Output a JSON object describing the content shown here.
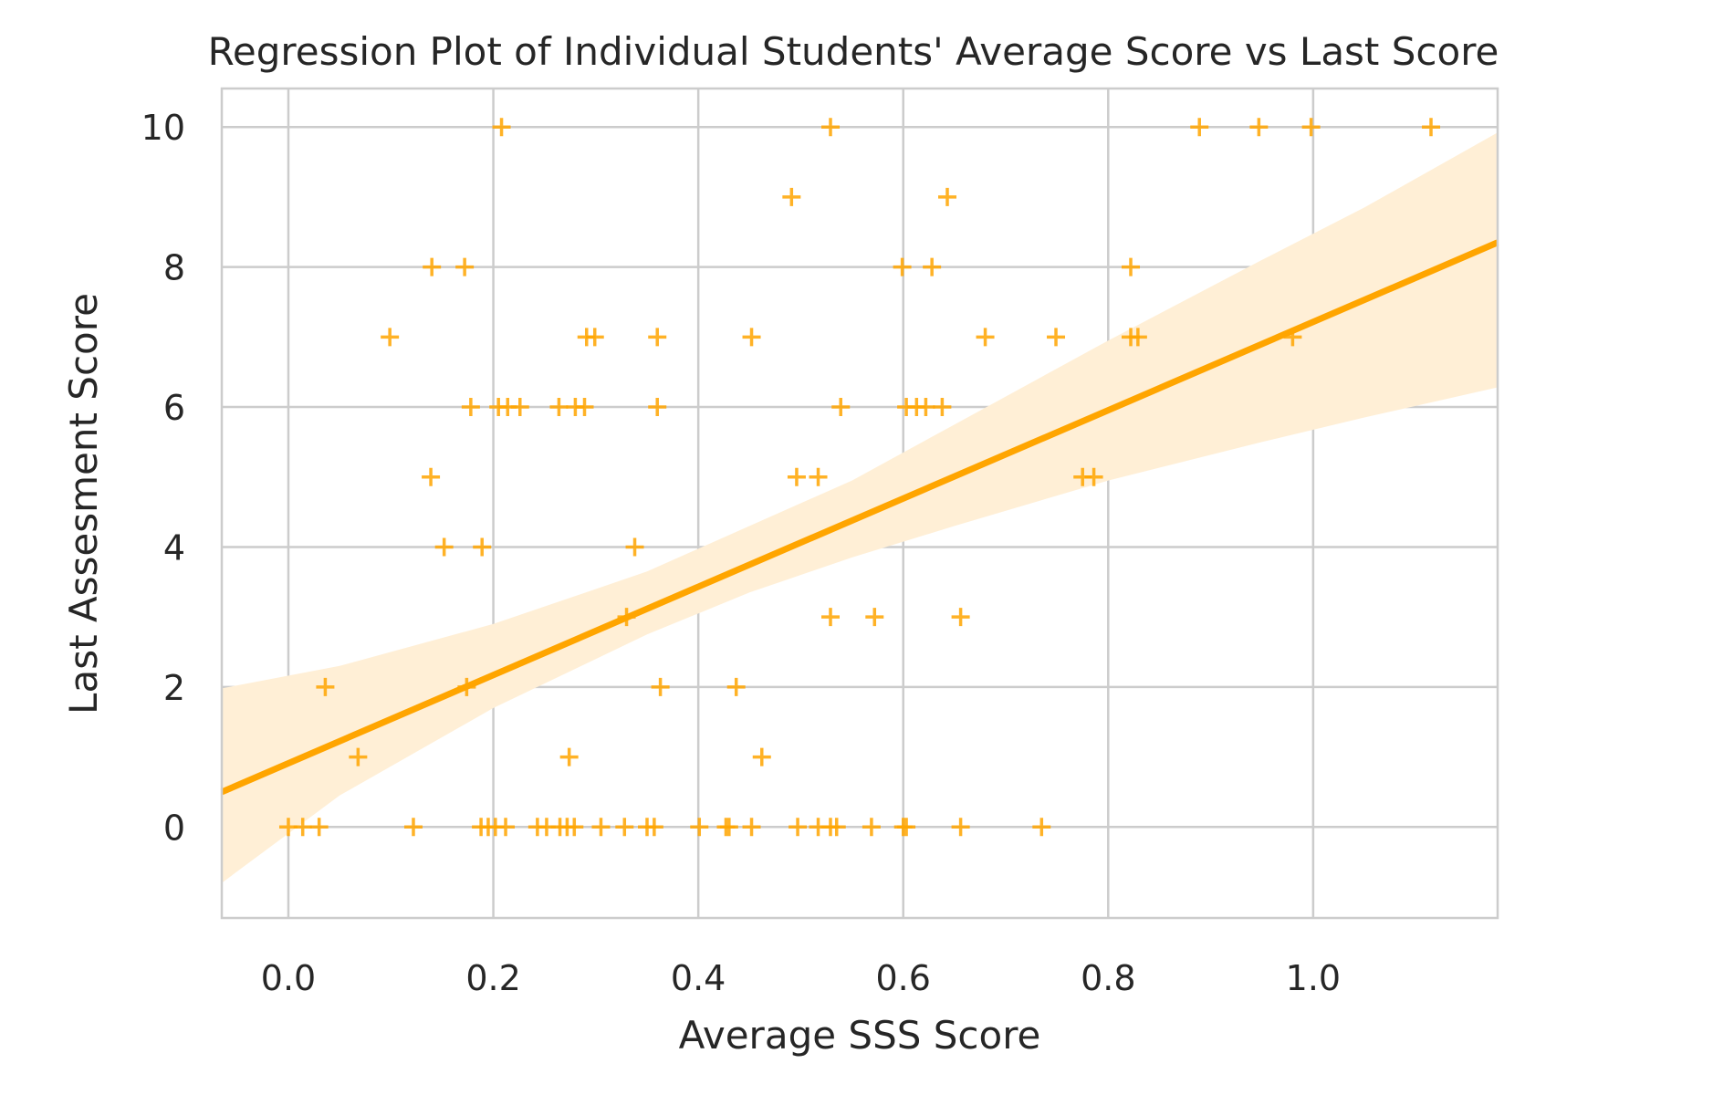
{
  "chart_data": {
    "type": "scatter",
    "title": "Regression Plot of Individual Students' Average Score vs Last Score",
    "xlabel": "Average SSS Score",
    "ylabel": "Last Assesment Score",
    "xlim": [
      -0.065,
      1.18
    ],
    "ylim": [
      -1.3,
      10.55
    ],
    "xticks": [
      0.0,
      0.2,
      0.4,
      0.6,
      0.8,
      1.0
    ],
    "xtick_labels": [
      "0.0",
      "0.2",
      "0.4",
      "0.6",
      "0.8",
      "1.0"
    ],
    "yticks": [
      0,
      2,
      4,
      6,
      8,
      10
    ],
    "ytick_labels": [
      "0",
      "2",
      "4",
      "6",
      "8",
      "10"
    ],
    "grid": true,
    "marker": "+",
    "color": "#FFA500",
    "band_color": "#FFEFD6",
    "points": [
      {
        "x": 0.208,
        "y": 10
      },
      {
        "x": 0.529,
        "y": 10
      },
      {
        "x": 0.889,
        "y": 10
      },
      {
        "x": 0.947,
        "y": 10
      },
      {
        "x": 0.998,
        "y": 10
      },
      {
        "x": 1.115,
        "y": 10
      },
      {
        "x": 0.491,
        "y": 9
      },
      {
        "x": 0.643,
        "y": 9
      },
      {
        "x": 0.14,
        "y": 8
      },
      {
        "x": 0.172,
        "y": 8
      },
      {
        "x": 0.599,
        "y": 8
      },
      {
        "x": 0.628,
        "y": 8
      },
      {
        "x": 0.822,
        "y": 8
      },
      {
        "x": 0.099,
        "y": 7
      },
      {
        "x": 0.291,
        "y": 7
      },
      {
        "x": 0.299,
        "y": 7
      },
      {
        "x": 0.36,
        "y": 7
      },
      {
        "x": 0.452,
        "y": 7
      },
      {
        "x": 0.68,
        "y": 7
      },
      {
        "x": 0.749,
        "y": 7
      },
      {
        "x": 0.822,
        "y": 7
      },
      {
        "x": 0.829,
        "y": 7
      },
      {
        "x": 0.98,
        "y": 7
      },
      {
        "x": 0.178,
        "y": 6
      },
      {
        "x": 0.205,
        "y": 6
      },
      {
        "x": 0.214,
        "y": 6
      },
      {
        "x": 0.226,
        "y": 6
      },
      {
        "x": 0.264,
        "y": 6
      },
      {
        "x": 0.28,
        "y": 6
      },
      {
        "x": 0.289,
        "y": 6
      },
      {
        "x": 0.36,
        "y": 6
      },
      {
        "x": 0.539,
        "y": 6
      },
      {
        "x": 0.603,
        "y": 6
      },
      {
        "x": 0.613,
        "y": 6
      },
      {
        "x": 0.622,
        "y": 6
      },
      {
        "x": 0.638,
        "y": 6
      },
      {
        "x": 0.139,
        "y": 5
      },
      {
        "x": 0.496,
        "y": 5
      },
      {
        "x": 0.517,
        "y": 5
      },
      {
        "x": 0.775,
        "y": 5
      },
      {
        "x": 0.786,
        "y": 5
      },
      {
        "x": 0.152,
        "y": 4
      },
      {
        "x": 0.189,
        "y": 4
      },
      {
        "x": 0.338,
        "y": 4
      },
      {
        "x": 0.33,
        "y": 3
      },
      {
        "x": 0.529,
        "y": 3
      },
      {
        "x": 0.572,
        "y": 3
      },
      {
        "x": 0.656,
        "y": 3
      },
      {
        "x": 0.036,
        "y": 2
      },
      {
        "x": 0.174,
        "y": 2
      },
      {
        "x": 0.363,
        "y": 2
      },
      {
        "x": 0.437,
        "y": 2
      },
      {
        "x": 0.068,
        "y": 1
      },
      {
        "x": 0.274,
        "y": 1
      },
      {
        "x": 0.462,
        "y": 1
      },
      {
        "x": 0.0,
        "y": 0
      },
      {
        "x": 0.014,
        "y": 0
      },
      {
        "x": 0.03,
        "y": 0
      },
      {
        "x": 0.122,
        "y": 0
      },
      {
        "x": 0.188,
        "y": 0
      },
      {
        "x": 0.195,
        "y": 0
      },
      {
        "x": 0.202,
        "y": 0
      },
      {
        "x": 0.212,
        "y": 0
      },
      {
        "x": 0.243,
        "y": 0
      },
      {
        "x": 0.252,
        "y": 0
      },
      {
        "x": 0.265,
        "y": 0
      },
      {
        "x": 0.272,
        "y": 0
      },
      {
        "x": 0.279,
        "y": 0
      },
      {
        "x": 0.305,
        "y": 0
      },
      {
        "x": 0.328,
        "y": 0
      },
      {
        "x": 0.35,
        "y": 0
      },
      {
        "x": 0.357,
        "y": 0
      },
      {
        "x": 0.401,
        "y": 0
      },
      {
        "x": 0.427,
        "y": 0
      },
      {
        "x": 0.43,
        "y": 0
      },
      {
        "x": 0.452,
        "y": 0
      },
      {
        "x": 0.497,
        "y": 0
      },
      {
        "x": 0.517,
        "y": 0
      },
      {
        "x": 0.529,
        "y": 0
      },
      {
        "x": 0.535,
        "y": 0
      },
      {
        "x": 0.569,
        "y": 0
      },
      {
        "x": 0.6,
        "y": 0
      },
      {
        "x": 0.603,
        "y": 0
      },
      {
        "x": 0.656,
        "y": 0
      },
      {
        "x": 0.735,
        "y": 0
      }
    ],
    "regression": {
      "x": [
        -0.065,
        1.18
      ],
      "y": [
        0.5,
        8.35
      ]
    },
    "confidence_band": {
      "x": [
        -0.065,
        0.05,
        0.2,
        0.35,
        0.45,
        0.55,
        0.65,
        0.8,
        0.95,
        1.05,
        1.18
      ],
      "lower": [
        -0.8,
        0.45,
        1.7,
        2.75,
        3.35,
        3.85,
        4.3,
        4.95,
        5.5,
        5.85,
        6.28
      ],
      "upper": [
        1.98,
        2.3,
        2.9,
        3.65,
        4.3,
        4.95,
        5.75,
        6.95,
        8.1,
        8.85,
        9.92
      ]
    }
  }
}
